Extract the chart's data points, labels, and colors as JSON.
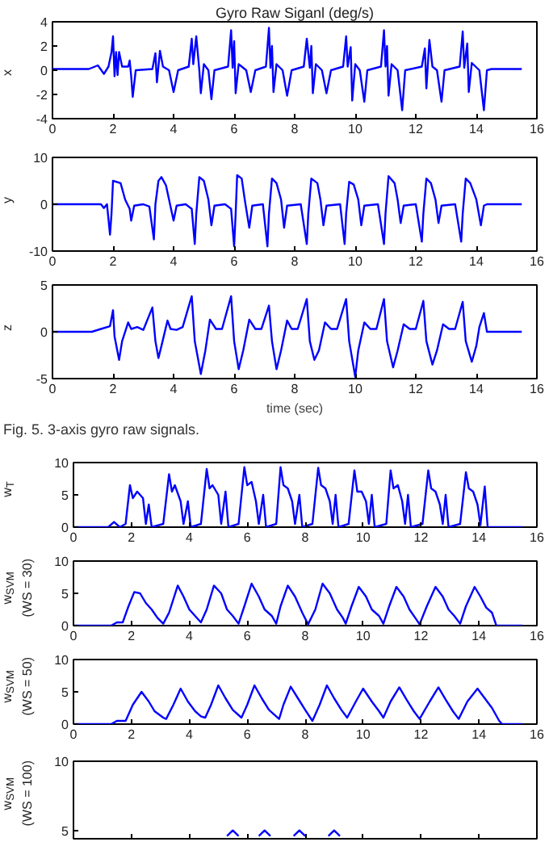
{
  "chart_data": [
    {
      "type": "line",
      "title": "Gyro Raw Siganl (deg/s)",
      "ylabel": "x",
      "color": "#0000ff",
      "xlim": [
        0,
        16
      ],
      "ylim": [
        -4,
        4
      ],
      "xticks": [
        0,
        2,
        4,
        6,
        8,
        10,
        12,
        14,
        16
      ],
      "yticks": [
        -4,
        -2,
        0,
        2,
        4
      ],
      "x": [
        0,
        1.2,
        1.5,
        1.7,
        1.85,
        1.95,
        2.0,
        2.05,
        2.1,
        2.15,
        2.2,
        2.3,
        2.5,
        2.55,
        2.6,
        2.65,
        2.75,
        3.3,
        3.4,
        3.45,
        3.55,
        3.65,
        3.85,
        4.0,
        4.15,
        4.5,
        4.6,
        4.65,
        4.75,
        4.85,
        4.9,
        5.0,
        5.15,
        5.25,
        5.35,
        5.8,
        5.9,
        5.95,
        6.0,
        6.05,
        6.15,
        6.4,
        6.55,
        6.7,
        7.05,
        7.15,
        7.2,
        7.25,
        7.3,
        7.4,
        7.6,
        7.75,
        7.9,
        8.3,
        8.4,
        8.5,
        8.55,
        8.6,
        8.7,
        8.9,
        9.05,
        9.2,
        9.6,
        9.7,
        9.75,
        9.85,
        9.9,
        10.0,
        10.15,
        10.3,
        10.4,
        10.85,
        10.95,
        11.0,
        11.05,
        11.1,
        11.2,
        11.4,
        11.55,
        11.65,
        12.2,
        12.3,
        12.35,
        12.45,
        12.55,
        12.7,
        12.85,
        12.95,
        13.45,
        13.55,
        13.6,
        13.7,
        13.75,
        13.85,
        14.1,
        14.25,
        14.35,
        14.5,
        15.5
      ],
      "values": [
        0.1,
        0.1,
        0.4,
        -0.3,
        0.3,
        1.5,
        2.8,
        -0.5,
        1.5,
        -0.4,
        1.5,
        0.3,
        0.3,
        0.8,
        -0.5,
        -2.2,
        0,
        0.1,
        1.4,
        -1.0,
        1.6,
        0.3,
        0,
        -1.8,
        0,
        0.3,
        2.6,
        0.5,
        2.8,
        0,
        -1.9,
        0.5,
        0,
        -2.4,
        0,
        0.3,
        3.3,
        0.2,
        2.4,
        -1.9,
        0.5,
        0,
        -1.8,
        0,
        0.3,
        3.5,
        0.2,
        2.0,
        -1.8,
        0.5,
        0,
        -2.1,
        0,
        0.3,
        2.6,
        0.2,
        2.0,
        -1.9,
        0.5,
        0,
        -1.9,
        0,
        0.3,
        2.8,
        0.3,
        1.9,
        -2.5,
        0.5,
        0,
        -2.6,
        0,
        0.3,
        3.3,
        0.3,
        2.0,
        -2.1,
        0.5,
        0,
        -3.3,
        0,
        0.3,
        1.8,
        -1.5,
        2.5,
        0.3,
        0,
        -2.6,
        0,
        0.3,
        3.2,
        0.2,
        2.2,
        -1.8,
        0.6,
        0,
        -3.3,
        0,
        0.1,
        0.1
      ]
    },
    {
      "type": "line",
      "ylabel": "y",
      "color": "#0000ff",
      "xlim": [
        0,
        16
      ],
      "ylim": [
        -10,
        10
      ],
      "xticks": [
        0,
        2,
        4,
        6,
        8,
        10,
        12,
        14,
        16
      ],
      "yticks": [
        -10,
        0,
        10
      ],
      "x": [
        0,
        1.6,
        1.7,
        1.8,
        1.9,
        1.95,
        2.0,
        2.25,
        2.4,
        2.55,
        2.6,
        2.7,
        3.0,
        3.2,
        3.35,
        3.4,
        3.5,
        3.6,
        3.75,
        3.9,
        4.0,
        4.1,
        4.4,
        4.6,
        4.7,
        4.75,
        4.85,
        5.0,
        5.15,
        5.25,
        5.35,
        5.7,
        5.9,
        6.0,
        6.05,
        6.1,
        6.25,
        6.35,
        6.5,
        6.6,
        6.95,
        7.1,
        7.15,
        7.25,
        7.4,
        7.55,
        7.65,
        7.75,
        8.2,
        8.4,
        8.45,
        8.55,
        8.75,
        8.85,
        8.95,
        9.05,
        9.5,
        9.65,
        9.7,
        9.8,
        9.95,
        10.1,
        10.2,
        10.3,
        10.75,
        10.95,
        11.0,
        11.1,
        11.3,
        11.4,
        11.5,
        11.6,
        12.0,
        12.2,
        12.25,
        12.35,
        12.5,
        12.65,
        12.75,
        12.85,
        13.3,
        13.5,
        13.55,
        13.65,
        13.8,
        14.0,
        14.15,
        14.25,
        14.35,
        15.5
      ],
      "values": [
        0,
        0,
        -0.8,
        0,
        -6.5,
        -2,
        5,
        4.5,
        1,
        -1,
        -3.5,
        -0.3,
        0,
        -0.5,
        -7.5,
        0,
        5,
        5.8,
        4,
        -0.5,
        -3.5,
        -0.3,
        0,
        -1,
        -8.5,
        -2,
        5.8,
        5.0,
        1,
        -4.5,
        -0.3,
        0,
        -1,
        -9,
        -2,
        6.2,
        5.5,
        1,
        -5,
        -0.3,
        0,
        -9,
        -2,
        5.5,
        4.5,
        1,
        -5,
        -0.3,
        0,
        -8.5,
        -2,
        5.5,
        4.5,
        1,
        -4.5,
        -0.3,
        0,
        -8.5,
        -2,
        4.8,
        4.2,
        1,
        -4.5,
        -0.3,
        0,
        -8.5,
        -2,
        6,
        4.5,
        1,
        -4,
        -0.3,
        0,
        -8,
        -2,
        5.5,
        4.5,
        1,
        -4,
        -0.3,
        0,
        -8,
        -2,
        5.5,
        4.5,
        1,
        -4.5,
        -0.3,
        0,
        0
      ]
    },
    {
      "type": "line",
      "ylabel": "z",
      "xlabel": "time (sec)",
      "color": "#0000ff",
      "xlim": [
        0,
        16
      ],
      "ylim": [
        -5,
        5
      ],
      "xticks": [
        0,
        2,
        4,
        6,
        8,
        10,
        12,
        14,
        16
      ],
      "yticks": [
        -5,
        0,
        5
      ],
      "annotations": [
        "Fig. 5.  3-axis gyro raw signals."
      ],
      "x": [
        0,
        1.3,
        1.6,
        1.9,
        2.0,
        2.05,
        2.2,
        2.3,
        2.5,
        2.6,
        2.8,
        3.0,
        3.3,
        3.4,
        3.5,
        3.6,
        3.8,
        3.9,
        4.1,
        4.3,
        4.6,
        4.7,
        4.9,
        5.05,
        5.2,
        5.4,
        5.6,
        5.9,
        6.0,
        6.15,
        6.3,
        6.5,
        6.7,
        6.9,
        7.15,
        7.25,
        7.4,
        7.55,
        7.75,
        7.9,
        8.1,
        8.4,
        8.5,
        8.65,
        8.8,
        9.0,
        9.2,
        9.4,
        9.7,
        9.8,
        10.0,
        10.1,
        10.3,
        10.5,
        10.7,
        10.95,
        11.05,
        11.25,
        11.4,
        11.6,
        11.8,
        12.0,
        12.25,
        12.35,
        12.55,
        12.7,
        12.9,
        13.1,
        13.3,
        13.55,
        13.65,
        13.85,
        14.0,
        14.1,
        14.25,
        14.35,
        15.5
      ],
      "values": [
        0,
        0,
        0.3,
        0.6,
        2.3,
        -0.5,
        -3,
        -1,
        1.0,
        0.3,
        0.5,
        0.2,
        2.6,
        -1,
        -2.8,
        -1.5,
        1.2,
        0.3,
        0.2,
        0.5,
        3.8,
        -1,
        -4.5,
        -2,
        1.3,
        0.3,
        0.3,
        3.8,
        -1,
        -4,
        -2,
        1.3,
        0.3,
        0.3,
        2.8,
        -1,
        -4,
        -2,
        1.2,
        0.3,
        0.3,
        3.5,
        -1,
        -3,
        -2,
        1.0,
        0.3,
        0.3,
        3.5,
        -1,
        -4.8,
        -2,
        1.0,
        0.3,
        0.3,
        3.5,
        -1,
        -3.8,
        -2,
        0.8,
        0.3,
        0.3,
        3.3,
        -1,
        -3.5,
        -2,
        0.8,
        0.3,
        0.3,
        3.2,
        -1,
        -3.2,
        -1.5,
        0.5,
        2.0,
        0,
        0
      ]
    },
    {
      "type": "line",
      "ylabel": "w$_{T}$",
      "color": "#0000ff",
      "xlim": [
        0,
        16
      ],
      "ylim": [
        0,
        10
      ],
      "xticks": [
        0,
        2,
        4,
        6,
        8,
        10,
        12,
        14,
        16
      ],
      "yticks": [
        0,
        5,
        10
      ],
      "x": [
        0,
        1.2,
        1.4,
        1.6,
        1.8,
        1.95,
        2.05,
        2.2,
        2.4,
        2.5,
        2.6,
        2.7,
        3.1,
        3.3,
        3.4,
        3.5,
        3.7,
        3.8,
        3.95,
        4.05,
        4.4,
        4.6,
        4.7,
        4.8,
        5.0,
        5.1,
        5.25,
        5.35,
        5.7,
        5.9,
        6.0,
        6.15,
        6.3,
        6.4,
        6.55,
        6.65,
        7.0,
        7.15,
        7.25,
        7.4,
        7.55,
        7.65,
        7.8,
        7.9,
        8.25,
        8.45,
        8.55,
        8.7,
        8.85,
        8.95,
        9.05,
        9.15,
        9.5,
        9.7,
        9.8,
        9.95,
        10.1,
        10.2,
        10.3,
        10.4,
        10.8,
        10.95,
        11.05,
        11.2,
        11.35,
        11.45,
        11.55,
        11.65,
        12.05,
        12.25,
        12.35,
        12.5,
        12.65,
        12.75,
        12.85,
        12.95,
        13.35,
        13.55,
        13.65,
        13.8,
        13.95,
        14.05,
        14.2,
        14.3,
        15.5
      ],
      "values": [
        0,
        0,
        0.8,
        0,
        0.5,
        6.5,
        4.5,
        5.5,
        4.5,
        0.5,
        3.5,
        0,
        0.5,
        8.2,
        5.5,
        6.5,
        4,
        0.5,
        4,
        0,
        0.5,
        9,
        6,
        6.5,
        5,
        0.5,
        5.5,
        0,
        0.5,
        9.3,
        6.5,
        7,
        4,
        0.5,
        5,
        0,
        0.5,
        9.3,
        6.5,
        6,
        4,
        0.5,
        5,
        0,
        0.5,
        9.2,
        6.5,
        6,
        4,
        0.5,
        5,
        0,
        0.5,
        8.8,
        5.5,
        5.5,
        4,
        0.5,
        5,
        0,
        0.5,
        8.8,
        6,
        6.5,
        4,
        0.5,
        5,
        0,
        0.5,
        8.8,
        6,
        5.5,
        3.5,
        0.5,
        5,
        0,
        0.5,
        8.5,
        6,
        5.5,
        3.5,
        0.3,
        6.3,
        0,
        0
      ]
    },
    {
      "type": "line",
      "ylabel": "w$_{SVM}$\n(WS = 30)",
      "color": "#0000ff",
      "xlim": [
        0,
        16
      ],
      "ylim": [
        0,
        10
      ],
      "xticks": [
        0,
        2,
        4,
        6,
        8,
        10,
        12,
        14,
        16
      ],
      "yticks": [
        0,
        5,
        10
      ],
      "x": [
        0,
        1.3,
        1.5,
        1.7,
        1.9,
        2.1,
        2.3,
        2.5,
        2.7,
        2.9,
        3.1,
        3.3,
        3.6,
        3.8,
        4.0,
        4.2,
        4.4,
        4.6,
        4.85,
        5.1,
        5.3,
        5.5,
        5.7,
        5.9,
        6.15,
        6.4,
        6.6,
        6.85,
        7.0,
        7.15,
        7.4,
        7.65,
        7.9,
        8.1,
        8.35,
        8.6,
        8.85,
        9.1,
        9.3,
        9.4,
        9.6,
        9.85,
        10.1,
        10.3,
        10.55,
        10.7,
        10.9,
        11.15,
        11.4,
        11.6,
        11.8,
        11.95,
        12.2,
        12.5,
        12.75,
        12.95,
        13.15,
        13.35,
        13.55,
        13.85,
        14.05,
        14.25,
        14.45,
        14.6,
        15.5
      ],
      "values": [
        0,
        0,
        0.5,
        0.5,
        3,
        5.2,
        5,
        3.5,
        2.5,
        1.2,
        0.3,
        2,
        6.2,
        4.5,
        2.5,
        1.5,
        0.5,
        2.5,
        6.2,
        5,
        2.5,
        1.5,
        0.3,
        3,
        6.5,
        4.5,
        2.5,
        1.5,
        0.3,
        3,
        6.2,
        4.5,
        2,
        0.2,
        2.5,
        6.5,
        5,
        2.5,
        1.2,
        0.3,
        3,
        6,
        4.5,
        2.5,
        1.5,
        0.3,
        3,
        6,
        4.5,
        2.5,
        1.2,
        0.2,
        3,
        6,
        4.5,
        2.5,
        1.5,
        0.3,
        3,
        6,
        4.5,
        2.8,
        2,
        0,
        0
      ]
    },
    {
      "type": "line",
      "ylabel": "w$_{SVM}$\n(WS = 50)",
      "color": "#0000ff",
      "xlim": [
        0,
        16
      ],
      "ylim": [
        0,
        10
      ],
      "xticks": [
        0,
        2,
        4,
        6,
        8,
        10,
        12,
        14,
        16
      ],
      "yticks": [
        0,
        5,
        10
      ],
      "x": [
        0,
        1.3,
        1.5,
        1.8,
        2.05,
        2.35,
        2.6,
        2.8,
        3.1,
        3.2,
        3.45,
        3.7,
        3.95,
        4.2,
        4.4,
        4.55,
        4.75,
        5.0,
        5.25,
        5.5,
        5.8,
        6.0,
        6.25,
        6.5,
        6.75,
        7.1,
        7.25,
        7.5,
        7.75,
        8.0,
        8.25,
        8.5,
        8.75,
        9.0,
        9.25,
        9.45,
        9.75,
        10.0,
        10.3,
        10.55,
        10.7,
        10.95,
        11.25,
        11.5,
        11.75,
        11.95,
        12.3,
        12.6,
        12.85,
        13.1,
        13.3,
        13.6,
        13.95,
        14.2,
        14.45,
        14.7,
        14.8,
        15.5
      ],
      "values": [
        0,
        0,
        0.5,
        0.5,
        3,
        5,
        3.5,
        2,
        1,
        0.8,
        3,
        5.5,
        3.5,
        2,
        1.2,
        1,
        3,
        6,
        4,
        2.2,
        1,
        3,
        6,
        4,
        2.2,
        0.8,
        3,
        5.8,
        4,
        2.2,
        0.5,
        3,
        6,
        4,
        2.2,
        1,
        3.5,
        5.5,
        3.5,
        2,
        1,
        3.5,
        5.7,
        3.8,
        2,
        0.8,
        3.5,
        5.7,
        3.8,
        2,
        0.8,
        3.5,
        5.5,
        4,
        2.5,
        0.5,
        0,
        0
      ]
    },
    {
      "type": "line",
      "ylabel": "w$_{SVM}$\n(WS = 100)",
      "color": "#0000ff",
      "xlim": [
        0,
        16
      ],
      "ylim": [
        4.4,
        10
      ],
      "xticks": [
        0,
        2,
        4,
        6,
        8,
        10,
        12,
        14,
        16
      ],
      "yticks": [
        5,
        10
      ],
      "tick_labels": "y",
      "x": [
        5.3,
        5.5,
        5.7,
        6.0,
        6.4,
        6.6,
        6.8,
        7.2,
        7.6,
        7.8,
        8.0,
        8.4,
        8.8,
        9.0,
        9.2
      ],
      "values": [
        4.6,
        5.0,
        4.6,
        null,
        4.6,
        5.0,
        4.6,
        null,
        4.6,
        5.0,
        4.6,
        null,
        4.6,
        5.0,
        4.6
      ]
    }
  ]
}
